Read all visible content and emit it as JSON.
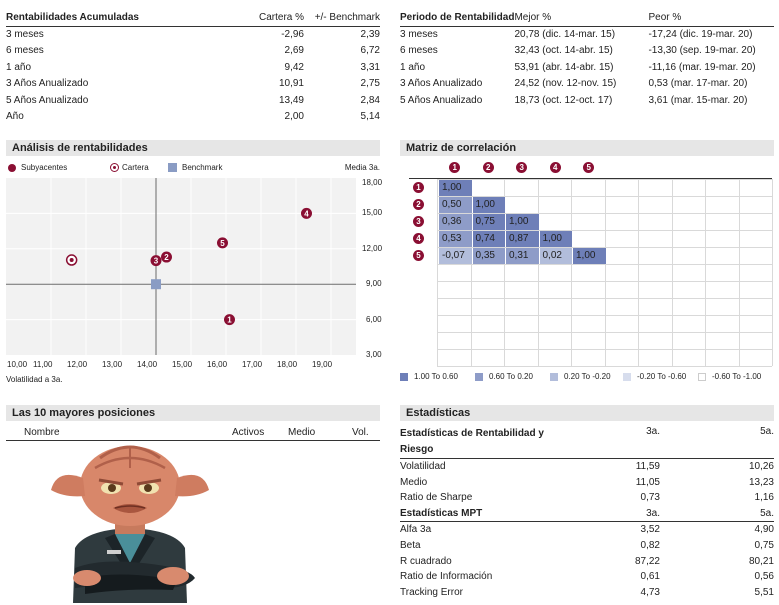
{
  "returns": {
    "headers": [
      "Rentabilidades Acumuladas",
      "Cartera %",
      "+/- Benchmark"
    ],
    "rows": [
      [
        "3 meses",
        "-2,96",
        "2,39"
      ],
      [
        "6 meses",
        "2,69",
        "6,72"
      ],
      [
        "1 año",
        "9,42",
        "3,31"
      ],
      [
        "3 Años Anualizado",
        "10,91",
        "2,75"
      ],
      [
        "5 Años Anualizado",
        "13,49",
        "2,84"
      ],
      [
        "Año",
        "2,00",
        "5,14"
      ]
    ]
  },
  "periods": {
    "headers": [
      "Periodo de Rentabilidad",
      "Mejor %",
      "Peor %"
    ],
    "rows": [
      [
        "3 meses",
        "20,78 (dic. 14-mar. 15)",
        "-17,24 (dic. 19-mar. 20)"
      ],
      [
        "6 meses",
        "32,43 (oct. 14-abr. 15)",
        "-13,30 (sep. 19-mar. 20)"
      ],
      [
        "1 año",
        "53,91 (abr. 14-abr. 15)",
        "-11,16 (mar. 19-mar. 20)"
      ],
      [
        "3 Años Anualizado",
        "24,52 (nov. 12-nov. 15)",
        "0,53 (mar. 17-mar. 20)"
      ],
      [
        "5 Años Anualizado",
        "18,73 (oct. 12-oct. 17)",
        "3,61 (mar. 15-mar. 20)"
      ]
    ]
  },
  "analysis": {
    "title": "Análisis de rentabilidades",
    "legend": [
      "Subyacentes",
      "Cartera",
      "Benchmark"
    ],
    "corner_label": "Media 3a.",
    "x_axis_label": "Volatilidad a 3a.",
    "x_ticks": [
      "10,00",
      "11,00",
      "12,00",
      "13,00",
      "14,00",
      "15,00",
      "16,00",
      "17,00",
      "18,00",
      "19,00"
    ],
    "y_ticks": [
      "18,00",
      "15,00",
      "12,00",
      "9,00",
      "6,00",
      "3,00"
    ]
  },
  "chart_data": {
    "type": "scatter",
    "title": "Análisis de rentabilidades",
    "xlabel": "Volatilidad a 3a.",
    "ylabel": "Media 3a.",
    "xlim": [
      10,
      20
    ],
    "ylim": [
      3,
      18
    ],
    "series": [
      {
        "name": "Subyacentes",
        "points": [
          {
            "label": "1",
            "x": 16.1,
            "y": 6.0
          },
          {
            "label": "2",
            "x": 14.3,
            "y": 11.3
          },
          {
            "label": "3",
            "x": 14.0,
            "y": 11.0
          },
          {
            "label": "4",
            "x": 18.3,
            "y": 15.0
          },
          {
            "label": "5",
            "x": 15.9,
            "y": 12.5
          }
        ]
      },
      {
        "name": "Cartera",
        "points": [
          {
            "label": "",
            "x": 11.59,
            "y": 11.05
          }
        ]
      },
      {
        "name": "Benchmark",
        "points": [
          {
            "label": "",
            "x": 14.0,
            "y": 9.0
          }
        ]
      }
    ]
  },
  "correlation": {
    "title": "Matriz de correlación",
    "labels": [
      "1",
      "2",
      "3",
      "4",
      "5"
    ],
    "matrix": [
      [
        "1,00"
      ],
      [
        "0,50",
        "1,00"
      ],
      [
        "0,36",
        "0,75",
        "1,00"
      ],
      [
        "0,53",
        "0,74",
        "0,87",
        "1,00"
      ],
      [
        "-0,07",
        "0,35",
        "0,31",
        "0,02",
        "1,00"
      ]
    ],
    "legend": [
      "1.00 To 0.60",
      "0.60 To 0.20",
      "0.20 To -0.20",
      "-0.20 To -0.60",
      "-0.60 To -1.00"
    ],
    "legend_colors": [
      "#6e7fb8",
      "#8e9cc8",
      "#b2bddb",
      "#d7dded",
      "#ffffff"
    ]
  },
  "top10": {
    "title": "Las 10 mayores posiciones",
    "columns": [
      "Nombre",
      "Activos",
      "Medio",
      "Vol."
    ]
  },
  "stats": {
    "title": "Estadísticas",
    "risk_header": "Estadísticas de Rentabilidad y Riesgo",
    "period_3": "3a.",
    "period_5": "5a.",
    "risk_rows": [
      [
        "Volatilidad",
        "11,59",
        "10,26"
      ],
      [
        "Medio",
        "11,05",
        "13,23"
      ],
      [
        "Ratio de Sharpe",
        "0,73",
        "1,16"
      ]
    ],
    "mpt_header": "Estadísticas MPT",
    "mpt_rows": [
      [
        "Alfa 3a",
        "3,52",
        "4,90"
      ],
      [
        "Beta",
        "0,82",
        "0,75"
      ],
      [
        "R cuadrado",
        "87,22",
        "80,21"
      ],
      [
        "Ratio de Información",
        "0,61",
        "0,56"
      ],
      [
        "Tracking Error",
        "4,73",
        "5,51"
      ]
    ]
  }
}
